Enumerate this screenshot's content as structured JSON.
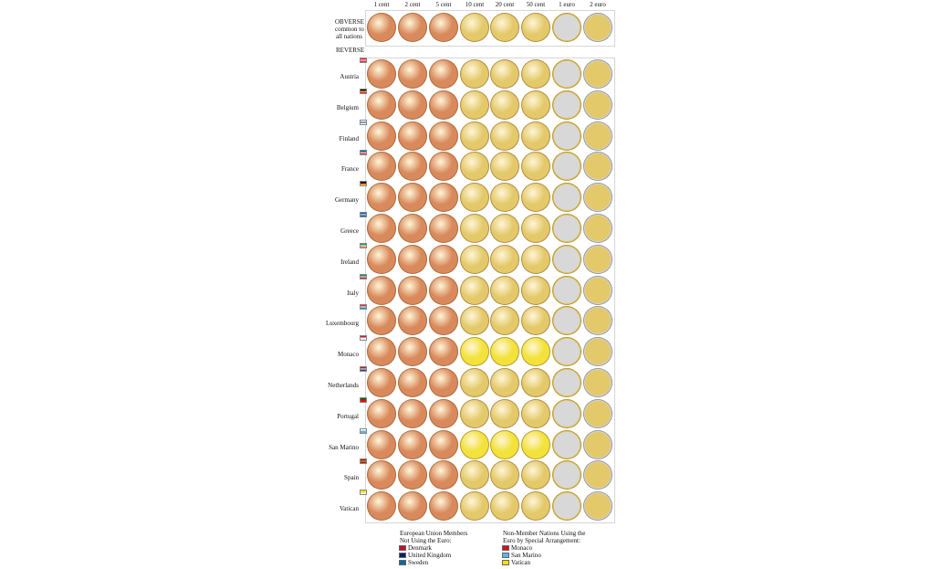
{
  "denominations": [
    "1 cent",
    "2 cent",
    "5 cent",
    "10 cent",
    "20 cent",
    "50 cent",
    "1 euro",
    "2 euro"
  ],
  "obverse_label": [
    "OBVERSE",
    "common to",
    "all nations"
  ],
  "reverse_label": "REVERSE",
  "countries": [
    {
      "name": "Austria",
      "flag": [
        "#ed2939",
        "#ffffff",
        "#ed2939"
      ]
    },
    {
      "name": "Belgium",
      "flag": [
        "#000000",
        "#fae042",
        "#ed2939"
      ]
    },
    {
      "name": "Finland",
      "flag": [
        "#ffffff",
        "#003580",
        "#ffffff"
      ]
    },
    {
      "name": "France",
      "flag": [
        "#0055a4",
        "#ffffff",
        "#ef4135"
      ]
    },
    {
      "name": "Germany",
      "flag": [
        "#000000",
        "#dd0000",
        "#ffce00"
      ]
    },
    {
      "name": "Greece",
      "flag": [
        "#0d5eaf",
        "#ffffff",
        "#0d5eaf"
      ]
    },
    {
      "name": "Ireland",
      "flag": [
        "#169b62",
        "#ffffff",
        "#ff883e"
      ]
    },
    {
      "name": "Italy",
      "flag": [
        "#009246",
        "#ffffff",
        "#ce2b37"
      ]
    },
    {
      "name": "Luxembourg",
      "flag": [
        "#ed2939",
        "#ffffff",
        "#00a1de"
      ]
    },
    {
      "name": "Monaco",
      "flag": [
        "#ce1126",
        "#ffffff",
        "#ffffff"
      ]
    },
    {
      "name": "Netherlands",
      "flag": [
        "#ae1c28",
        "#ffffff",
        "#21468b"
      ]
    },
    {
      "name": "Portugal",
      "flag": [
        "#006600",
        "#ff0000",
        "#ff0000"
      ]
    },
    {
      "name": "San Marino",
      "flag": [
        "#ffffff",
        "#5eb6e4",
        "#5eb6e4"
      ]
    },
    {
      "name": "Spain",
      "flag": [
        "#aa151b",
        "#f1bf00",
        "#aa151b"
      ]
    },
    {
      "name": "Vatican",
      "flag": [
        "#ffe000",
        "#ffe000",
        "#ffffff"
      ]
    }
  ],
  "legend_eu": {
    "title": [
      "European Union Members",
      "Not Using the Euro:"
    ],
    "items": [
      {
        "name": "Denmark",
        "color": "#c60c30"
      },
      {
        "name": "United Kingdom",
        "color": "#012169"
      },
      {
        "name": "Sweden",
        "color": "#006aa7"
      }
    ]
  },
  "legend_nonmember": {
    "title": [
      "Non-Member Nations Using the",
      "Euro by Special Arrangement:"
    ],
    "items": [
      {
        "name": "Monaco",
        "color": "#ce1126"
      },
      {
        "name": "San Marino",
        "color": "#5eb6e4"
      },
      {
        "name": "Vatican",
        "color": "#ffe000"
      }
    ]
  },
  "colors": {
    "copper": "#d98a5c",
    "gold": "#e3c96a",
    "silver": "#d8d8d8",
    "yellow_mc": "#f2e23a"
  }
}
